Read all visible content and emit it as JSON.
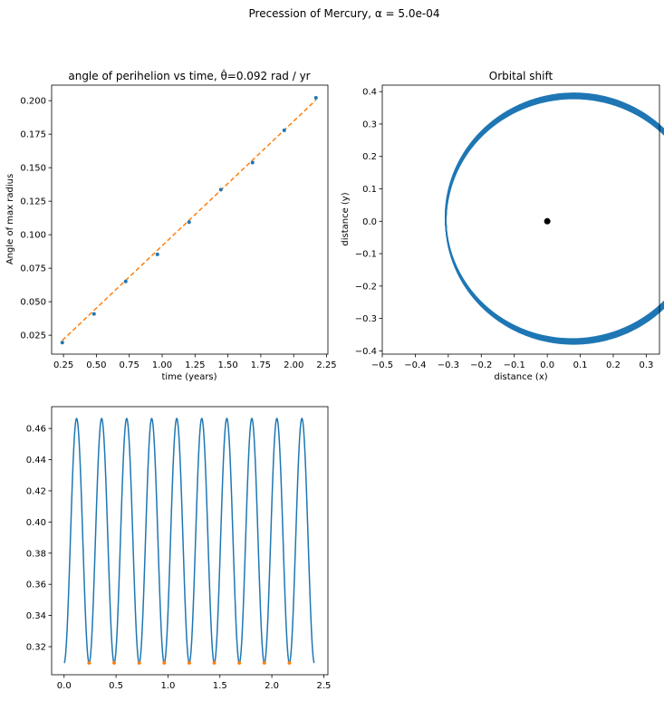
{
  "figure": {
    "suptitle": "Precession of Mercury, α = 5.0e-04"
  },
  "chart_data": [
    {
      "type": "scatter",
      "title": "angle of perihelion vs time, θ̇=0.092 rad / yr",
      "xlabel": "time (years)",
      "ylabel": "Angle of max radius",
      "xlim": [
        0.16,
        2.26
      ],
      "ylim": [
        0.0109,
        0.2116
      ],
      "xticks": [
        0.25,
        0.5,
        0.75,
        1.0,
        1.25,
        1.5,
        1.75,
        2.0,
        2.25
      ],
      "xtick_labels": [
        "0.25",
        "0.50",
        "0.75",
        "1.00",
        "1.25",
        "1.50",
        "1.75",
        "2.00",
        "2.25"
      ],
      "yticks": [
        0.025,
        0.05,
        0.075,
        0.1,
        0.125,
        0.15,
        0.175,
        0.2
      ],
      "ytick_labels": [
        "0.025",
        "0.050",
        "0.075",
        "0.100",
        "0.125",
        "0.150",
        "0.175",
        "0.200"
      ],
      "grid": false,
      "series": [
        {
          "kind": "scatter",
          "color": "#1f77b4",
          "x": [
            0.241,
            0.482,
            0.723,
            0.964,
            1.205,
            1.446,
            1.687,
            1.928,
            2.169
          ],
          "y": [
            0.0195,
            0.0409,
            0.0651,
            0.0853,
            0.1094,
            0.1336,
            0.1538,
            0.1779,
            0.2021
          ]
        },
        {
          "kind": "line",
          "style": "dashed",
          "color": "#ff7f0e",
          "x": [
            0.241,
            2.169
          ],
          "y": [
            0.0211,
            0.2005
          ]
        }
      ]
    },
    {
      "type": "line",
      "title": "Orbital shift",
      "xlabel": "distance (x)",
      "ylabel": "distance (y)",
      "xlim": [
        -0.5,
        0.34
      ],
      "ylim": [
        -0.41,
        0.42
      ],
      "xticks": [
        -0.5,
        -0.4,
        -0.3,
        -0.2,
        -0.1,
        0.0,
        0.1,
        0.2,
        0.3
      ],
      "xtick_labels": [
        "−0.5",
        "−0.4",
        "−0.3",
        "−0.2",
        "−0.1",
        "0.0",
        "0.1",
        "0.2",
        "0.3"
      ],
      "yticks": [
        -0.4,
        -0.3,
        -0.2,
        -0.1,
        0.0,
        0.1,
        0.2,
        0.3,
        0.4
      ],
      "ytick_labels": [
        "−0.4",
        "−0.3",
        "−0.2",
        "−0.1",
        "0.0",
        "0.1",
        "0.2",
        "0.3",
        "0.4"
      ],
      "grid": false,
      "orbit": {
        "color": "#1f77b4",
        "semi_major_axis": 0.387,
        "eccentricity": 0.206,
        "periods": 10,
        "precession_rad_per_orbit": 0.0223
      },
      "sun": {
        "x": 0.0,
        "y": 0.0,
        "color": "#000000"
      }
    },
    {
      "type": "line",
      "title": "",
      "xlabel": "",
      "ylabel": "",
      "xlim": [
        -0.12,
        2.54
      ],
      "ylim": [
        0.302,
        0.474
      ],
      "xticks": [
        0.0,
        0.5,
        1.0,
        1.5,
        2.0,
        2.5
      ],
      "xtick_labels": [
        "0.0",
        "0.5",
        "1.0",
        "1.5",
        "2.0",
        "2.5"
      ],
      "yticks": [
        0.32,
        0.34,
        0.36,
        0.38,
        0.4,
        0.42,
        0.44,
        0.46
      ],
      "ytick_labels": [
        "0.32",
        "0.34",
        "0.36",
        "0.38",
        "0.40",
        "0.42",
        "0.44",
        "0.46"
      ],
      "grid": false,
      "radius_curve": {
        "color": "#1f77b4",
        "t_start": 0.0,
        "t_end": 2.41,
        "period": 0.241,
        "r_min": 0.3096,
        "r_max": 0.4664
      },
      "minima_points": {
        "color": "#ff7f0e",
        "x": [
          0.241,
          0.482,
          0.723,
          0.964,
          1.205,
          1.446,
          1.687,
          1.928,
          2.169
        ],
        "y": [
          0.3096,
          0.3096,
          0.3096,
          0.3096,
          0.3096,
          0.3096,
          0.3096,
          0.3096,
          0.3096
        ]
      }
    }
  ]
}
